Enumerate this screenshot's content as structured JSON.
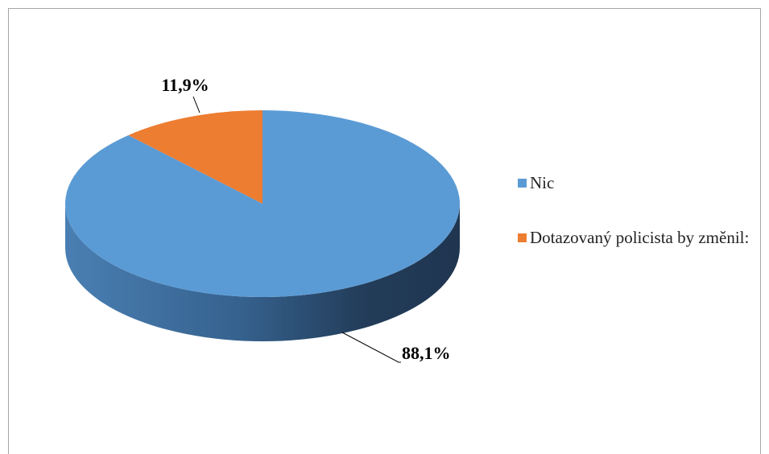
{
  "chart_data": {
    "type": "pie",
    "categories": [
      "Nic",
      "Dotazovaný policista by změnil:"
    ],
    "values": [
      88.1,
      11.9
    ],
    "value_labels": [
      "88,1%",
      "11,9%"
    ],
    "colors": [
      "#5b9bd5",
      "#ed7d31"
    ],
    "legend": "right"
  }
}
